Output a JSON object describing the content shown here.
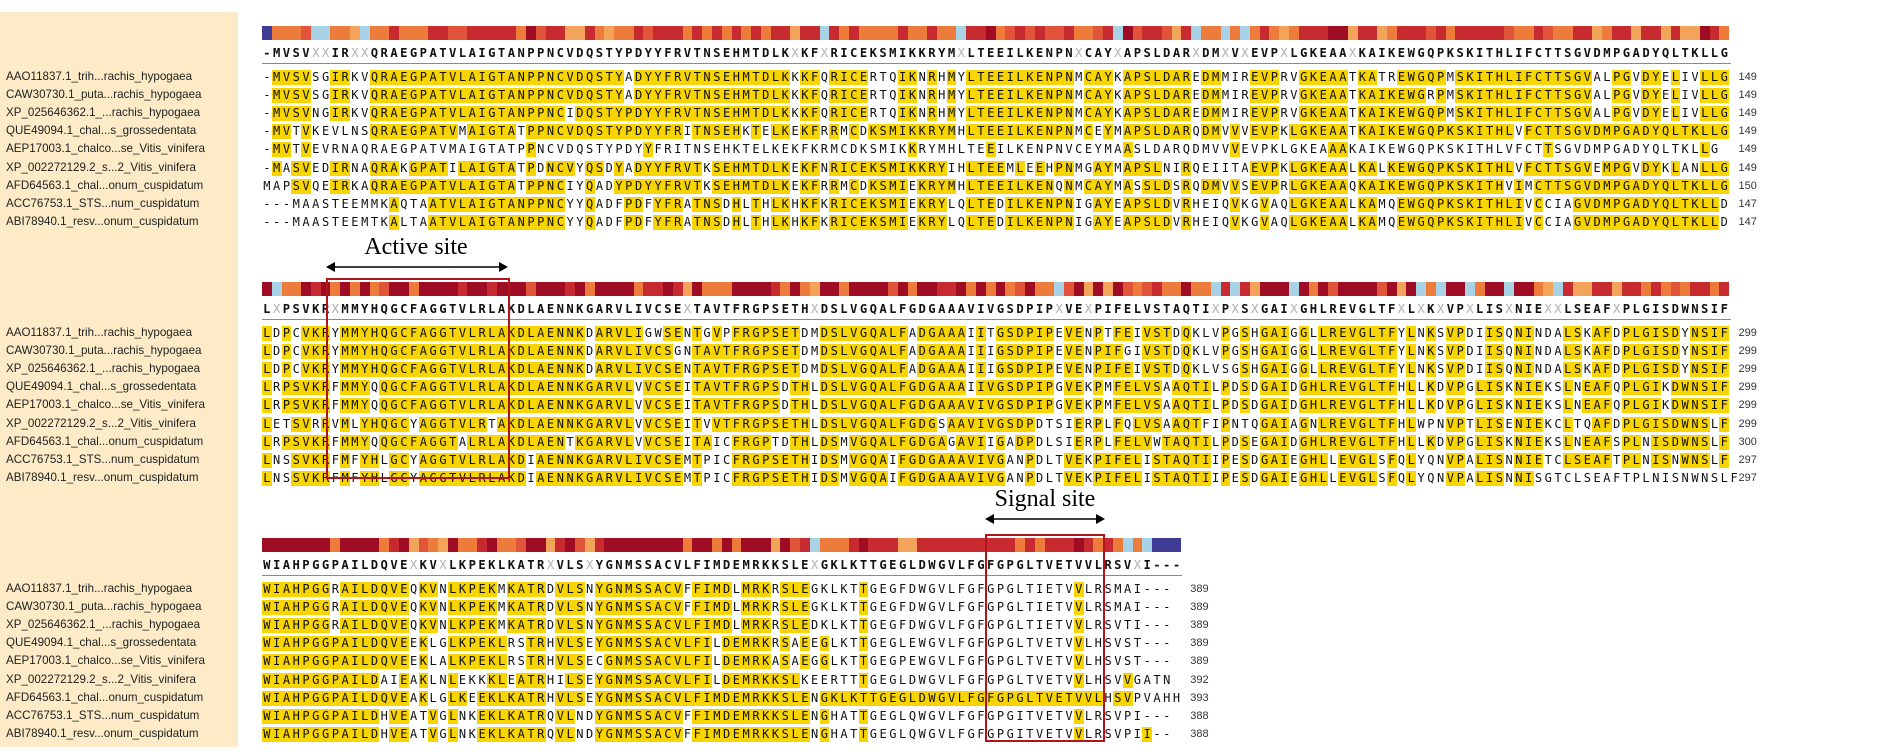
{
  "annotations": {
    "active_site": "Active site",
    "signal_site": "Signal site"
  },
  "colors": {
    "highlight": "#f8d400",
    "box": "#b0141c",
    "label_panel": "#fcebc6",
    "conservation_palette": [
      "#9e0d23",
      "#c72a2f",
      "#e2543a",
      "#ec7b3c",
      "#f4a35a",
      "#a8d2e6",
      "#3f3c96"
    ]
  },
  "sequence_names": [
    "AAO11837.1_trih...rachis_hypogaea",
    "CAW30730.1_puta...rachis_hypogaea",
    "XP_025646362.1_...rachis_hypogaea",
    "QUE49094.1_chal...s_grossedentata",
    "AEP17003.1_chalco...se_Vitis_vinifera",
    "XP_002272129.2_s...2_Vitis_vinifera",
    "AFD64563.1_chal...onum_cuspidatum",
    "ACC76753.1_STS...num_cuspidatum",
    "ABI78940.1_resv...onum_cuspidatum"
  ],
  "blocks": [
    {
      "consensus": "-MVSVXXIRXXQRAEGPATVLAIGTANPPNCVDQSTYPDYYFRVTNSEHMTDLKXKFXRICEKSMIKKRYMXLTEEILKENPNXCAYXAPSLDARXDMXVXEVPXLGKEAAXKAIKEWGQPKSKITHLIFCTTSGVDMPGADYQLTKLLG",
      "sequences": [
        "-MVSVSGIRKVQRAEGPATVLAIGTANPPNCVDQSTYADYYFRVTNSEHMTDLKKKFQRICERTQIKNRHMYLTEEILKENPNMCAYKAPSLDAREDMMIREVPRVGKEAATKATREWGQPMSKITHLIFCTTSGVALPGVDYELIVLLG",
        "-MVSVSGIRKVQRAEGPATVLAIGTANPPNCVDQSTYADYYFRVTNSEHMTDLKKKFQRICERTQIKNRHMYLTEEILKENPNMCAYKAPSLDAREDMMIREVPRVGKEAATKAIKEWGRPMSKITHLIFCTTSGVALPGVDYELIVLLG",
        "-MVSVNGIRKVQRAEGPATVLAIGTANPPNCIDQSTYPDYYFRVTNSEHMTDLKKKFQRICERTQIKNRHMYLTEEILKENPNMCAYKAPSLDAREDMMIREVPRVGKEAATKAIKEWGQPMSKITHLIFCTTSGVALPGVDYELIVLLG",
        "-MVTVKEVLNSQRAEGPATVMAIGTATPPNCVDQSTYPDYYFRITNSEHKTELKEKFRRMCDKSMIKKRYMHLTEEILKENPNMCEYMAPSLDARQDMVVVEVPKLGKEAATKAIKEWGQPKSKITHLVFCTTSGVDMPGADYQLTKLLG",
        "-MVTVEVRNAQRAEGPATVMAIGTATPPNCVDQSTYPDYYFRITNSEHKTELKEKFKRMCDKSMIKKRYMHLTEEILKENPNVCEYMAASLDARQDMVVVEVPKLGKEAAAKAIKEWGQPKSKITHLVFCTTSGVDMPGADYQLTKLLG",
        "-MASVEDIRNAQRAKGPATILAIGTATPDNCVYQSDYADYYFRVTKSEHMTDLKEKFNRICEKSMIKKRYIHLTEEMLEEHPNMGAYMAPSLNIRQEIITAEVPKLGKEAALKALKEWGQPKSKITHLVFCTTSGVEMPGVDYKLANLLG",
        "MAPSVQEIRKAQRAEGPATVLAIGTATPPNCIYQADYPDYYFRVTKSEHMTDLKEKFRRMCDKSMIEKRYMHLTEEILKENQNMCAYMASSLDSRQDMVVSEVPRLGKEAAQKAIKEWGQPKSKITHVIMCTTSGVDMPGADYQLTKLLG",
        "---MAASTEEMMKAQTAATVLAIGTANPPNCYYQADFPDFYFRATNSDHLTHLKHKFKRICEKSMIEKRYLQLTEDILKENPNIGAYEAPSLDVRHEIQVKGVAQLGKEAALKAMQEWGQPKSKITHLIVCCIAGVDMPGADYQLTKLLD",
        "---MAASTEEMTKALTAATVLAIGTANPPNCYYQADFPDFYFRATNSDHLTHLKHKFKRICEKSMIEKRYLQLTEDILKENPNIGAYEAPSLDVRHEIQVKGVAQLGKEAALKAMQEWGQPKSKITHLIVCCIAGVDMPGADYQLTKLLD"
      ],
      "numbers": [
        "149",
        "149",
        "149",
        "149",
        "149",
        "149",
        "150",
        "147",
        "147"
      ]
    },
    {
      "consensus": "LXPSVKRXMMYHQGCFAGGTVLRLAKDLAENNKGARVLIVCSEXTAVTFRGPSETHXDSLVGQALFGDGAAAVIVGSDPIPXVEXPIFELVSTAQTIXPXSXGAIXGHLREVGLTFXLXKXVPXLISXNIEXXLSEAFXPLGISDWNSIF",
      "sequences": [
        "LDPCVKRYMMYHQGCFAGGTVLRLAKDLAENNKDARVLIGWSENTGVPFRGPSETDMDSLVGQALFADGAAAIITGSDPIPEVENPTFEIVSTDQKLVPGSHGAIGGLLREVGLTFYLNKSVPDIISQNINDALSKAFDPLGISDYNSIF",
        "LDPCVKRYMMYHQGCFAGGTVLRLAKDLAENNKDARVLIVCSGNTAVTFRGPSETDMDSLVGQALFADGAAAIIIGSDPIPEVENPIFGIVSTDQKLVPGSHGAIGGLLREVGLTFYLNKSVPDIISQNINDALSKAFDPLGISDYNSIF",
        "LDPCVKRYMMYHQGCFAGGTVLRLAKDLAENNKDARVLIVCSENTAVTFRGPSETDMDSLVGQALFADGAAAIIIGSDPIPEVENPIFEIVSTDQKLVSGSHGAIGGLLREVGLTFYLNKSVPDIISQNINDALSKAFDPLGISDYNSIF",
        "LRPSVKRFMMYQQGCFAGGTVLRLAKDLAENNKGARVLVVCSEITAVTFRGPSDTHLDSLVGQALFGDGAAAIIVGSDPIPGVEKPMFELVSAAQTILPDSDGAIDGHLREVGLTFHLLKDVPGLISKNIEKSLNEAFQPLGIKDWNSIF",
        "LRPSVKRFMMYQQGCFAGGTVLRLAKDLAENNKGARVLVVCSEITAVTFRGPSDTHLDSLVGQALFGDGAAAVIVGSDPIPGVEKPMFELVSAAQTILPDSDGAIDGHLREVGLTFHLLKDVPGLISKNIEKSLNEAFQPLGIKDWNSIF",
        "LETSVRRVMLYHQGCYAGGTVLRTAKDLAENNKGARVLVVCSEITVVTFRGPSETHLDSLVGQALFGDGSAAVIVGSDPDTSIERPLFQLVSAAQTFIPNTQGAIAGNLREVGLTFHLWPNVPTLISENIEKCLTQAFDPLGISDWNSLF",
        "LRPSVKRFMMYQQGCFAGGTALRLAKDLAENTKGARVLVVCSEITAICFRGPTDTHLDSMVGQALFGDGAGAVIIGADPDLSIERPLFELVWTAQTILPDSEGAIDGHLREVGLTFHLLKDVPGLISKNIEKSLNEAFSPLNISDWNSLF",
        "LNSSVKRFMFYHLGCYAGGTVLRLAKDIAENNKGARVLIVCSEMTPICFRGPSETHIDSMVGQAIFGDGAAAVIVGANPDLTVEKPIFELISTAQTIIPESDGAIEGHLLEVGLSFQLYQNVPALISNNIETCLSEAFTPLNISNWNSLF",
        "LNSSVKRFMFYHLGCYAGGTVLRLAKDIAENNKGARVLIVCSEMTPICFRGPSETHIDSMVGQAIFGDGAAAVIVGANPDLTVEKPIFELISTAQTIIPESDGAIEGHLLEVGLSFQLYQNVPALISNNISGTCLSEAFTPLNISNWNSLF"
      ],
      "numbers": [
        "299",
        "299",
        "299",
        "299",
        "299",
        "299",
        "300",
        "297",
        "297"
      ]
    },
    {
      "consensus": "WIAHPGGPAILDQVEXKVXLKPEKLKATRXVLSXYGNMSSACVLFIMDEMRKKSLEXGKLKTTGEGLDWGVLFGFGPGLTVETVVLRSVXI---",
      "sequences": [
        "WIAHPGGRAILDQVEQKVNLKPEKMKATRDVLSNYGNMSSACVFFIMDLMRKRSLEGKLKTTGEGFDWGVLFGFGPGLTIETVVLRSMAI---",
        "WIAHPGGRAILDQVEQKVNLKPEKMKATRDVLSNYGNMSSACVFFIMDLMRKRSLEGKLKTTGEGFDWGVLFGFGPGLTIETVVLRSMAI---",
        "WIAHPGGRAILDQVEQKVNLKPEKMKATRDVLSNYGNMSSACVLFIMDLMRKRSLEDKLKTTGEGFDWGVLFGFGPGLTIETVVLRSVTI---",
        "WIAHPGGPAILDQVEEKLGLKPEKLRSTRHVLSEYGNMSSACVLFILDEMRKRSAEEGLKTTGEGLEWGVLFGFGPGLTVETVVLHSVST---",
        "WIAHPGGPAILDQVEEKLALKPEKLRSTRHVLSECGNMSSACVLFILDEMRKASAEGGLKTTGEGPEWGVLFGFGPGLTVETVVLHSVST---",
        "WIAHPGGPAILDAIEAKLNLEKKKLEATRHILSEYGNMSSACVLFILDEMRKKSLKEERTTTGEGLDWGVLFGFGPGLTVETVVLHSVVGATN",
        "WIAHPGGPAILDQVEAKLGLKEEKLKATRHVLSEYGNMSSACVLFIMDEMRKKSLENGKLKTTGEGLDWGVLFGFGPGLTVETVVLHSVPVAHH",
        "WIAHPGGPAILDHVEATVGLNKEKLKATRQVLNDYGNMSSACVFFIMDEMRKKSLENGHATTGEGLQWGVLFGFGPGITVETVVLRSVPI---",
        "WIAHPGGPAILDHVEATVGLNKEKLKATRQVLNDYGNMSSACVFFIMDEMRKKSLENGHATTGEGLQWGVLFGFGPGITVETVVLRSVPII--"
      ],
      "numbers": [
        "389",
        "389",
        "389",
        "389",
        "389",
        "392",
        "393",
        "388",
        "388"
      ]
    }
  ]
}
